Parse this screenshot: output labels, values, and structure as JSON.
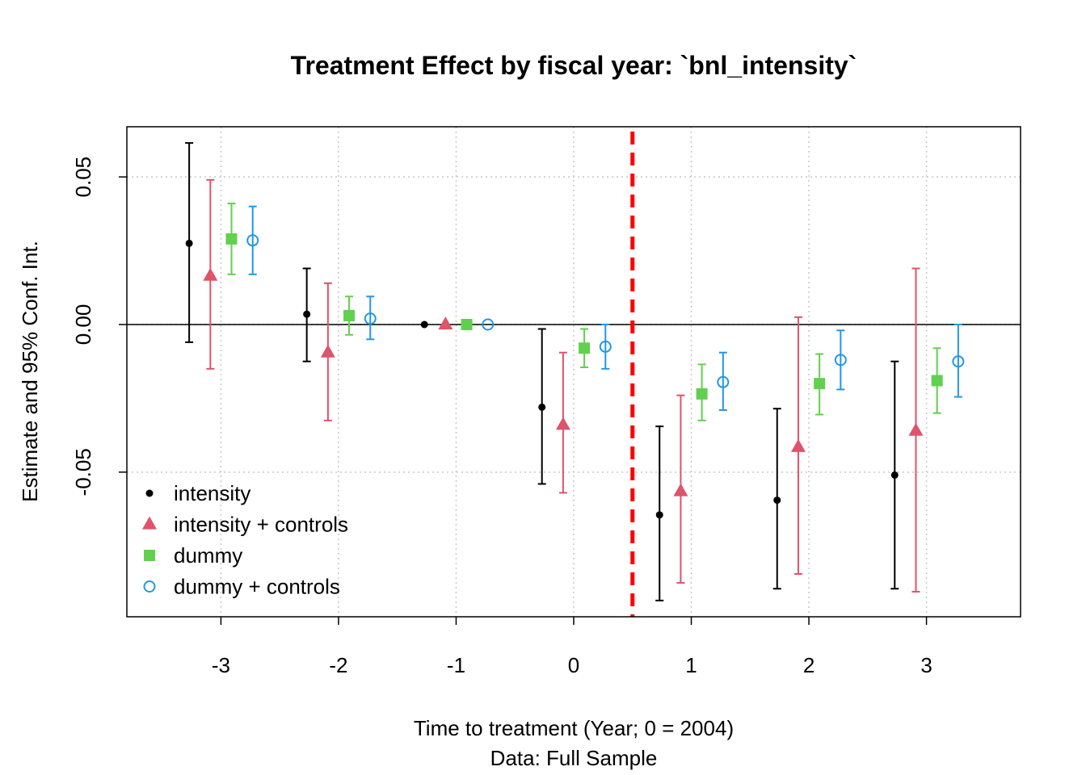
{
  "chart_data": {
    "type": "scatter",
    "title": "Treatment Effect by fiscal year: `bnl_intensity`",
    "xlabel": "Time to treatment (Year; 0 = 2004)",
    "xlabel2": "Data: Full Sample",
    "ylabel": "Estimate and 95% Conf. Int.",
    "x_ticks": [
      -3,
      -2,
      -1,
      0,
      1,
      2,
      3
    ],
    "x_tick_labels": [
      "-3",
      "-2",
      "-1",
      "0",
      "1",
      "2",
      "3"
    ],
    "y_ticks": [
      -0.05,
      0.0,
      0.05
    ],
    "y_tick_labels": [
      "-0.05",
      "0.00",
      "0.05"
    ],
    "xlim": [
      -3.8,
      3.8
    ],
    "ylim": [
      -0.099,
      0.067
    ],
    "grid": true,
    "reference_hline": 0,
    "treatment_vline": 0.5,
    "series": [
      {
        "name": "intensity",
        "color": "#000000",
        "marker": "dot",
        "offset": -0.27,
        "x": [
          -3,
          -2,
          -1,
          0,
          1,
          2,
          3
        ],
        "estimate": [
          0.0275,
          0.0035,
          0.0,
          -0.028,
          -0.0645,
          -0.0595,
          -0.051
        ],
        "ci_low": [
          -0.006,
          -0.0125,
          0.0,
          -0.054,
          -0.0935,
          -0.0895,
          -0.0895
        ],
        "ci_high": [
          0.0615,
          0.019,
          0.0,
          -0.0015,
          -0.0345,
          -0.0285,
          -0.0125
        ]
      },
      {
        "name": "intensity + controls",
        "color": "#DF536B",
        "marker": "triangle",
        "offset": -0.09,
        "x": [
          -3,
          -2,
          -1,
          0,
          1,
          2,
          3
        ],
        "estimate": [
          0.0165,
          -0.0095,
          0.0,
          -0.034,
          -0.0565,
          -0.0415,
          -0.036
        ],
        "ci_low": [
          -0.015,
          -0.0325,
          0.0,
          -0.057,
          -0.0875,
          -0.0845,
          -0.0905
        ],
        "ci_high": [
          0.049,
          0.014,
          0.0,
          -0.0095,
          -0.024,
          0.0025,
          0.019
        ]
      },
      {
        "name": "dummy",
        "color": "#61D04F",
        "marker": "square",
        "offset": 0.09,
        "x": [
          -3,
          -2,
          -1,
          0,
          1,
          2,
          3
        ],
        "estimate": [
          0.029,
          0.003,
          0.0,
          -0.008,
          -0.0235,
          -0.02,
          -0.019
        ],
        "ci_low": [
          0.017,
          -0.0035,
          0.0,
          -0.0145,
          -0.0325,
          -0.0305,
          -0.03
        ],
        "ci_high": [
          0.041,
          0.0095,
          0.0,
          -0.0015,
          -0.0135,
          -0.01,
          -0.008
        ]
      },
      {
        "name": "dummy + controls",
        "color": "#2297E6",
        "marker": "circle",
        "offset": 0.27,
        "x": [
          -3,
          -2,
          -1,
          0,
          1,
          2,
          3
        ],
        "estimate": [
          0.0285,
          0.002,
          0.0,
          -0.0075,
          -0.0195,
          -0.012,
          -0.0125
        ],
        "ci_low": [
          0.017,
          -0.005,
          0.0,
          -0.015,
          -0.029,
          -0.022,
          -0.0245
        ],
        "ci_high": [
          0.04,
          0.0095,
          0.0,
          0.0,
          -0.0095,
          -0.002,
          0.0
        ]
      }
    ],
    "legend": [
      "intensity",
      "intensity + controls",
      "dummy",
      "dummy + controls"
    ],
    "legend_position": "bottom-left"
  }
}
